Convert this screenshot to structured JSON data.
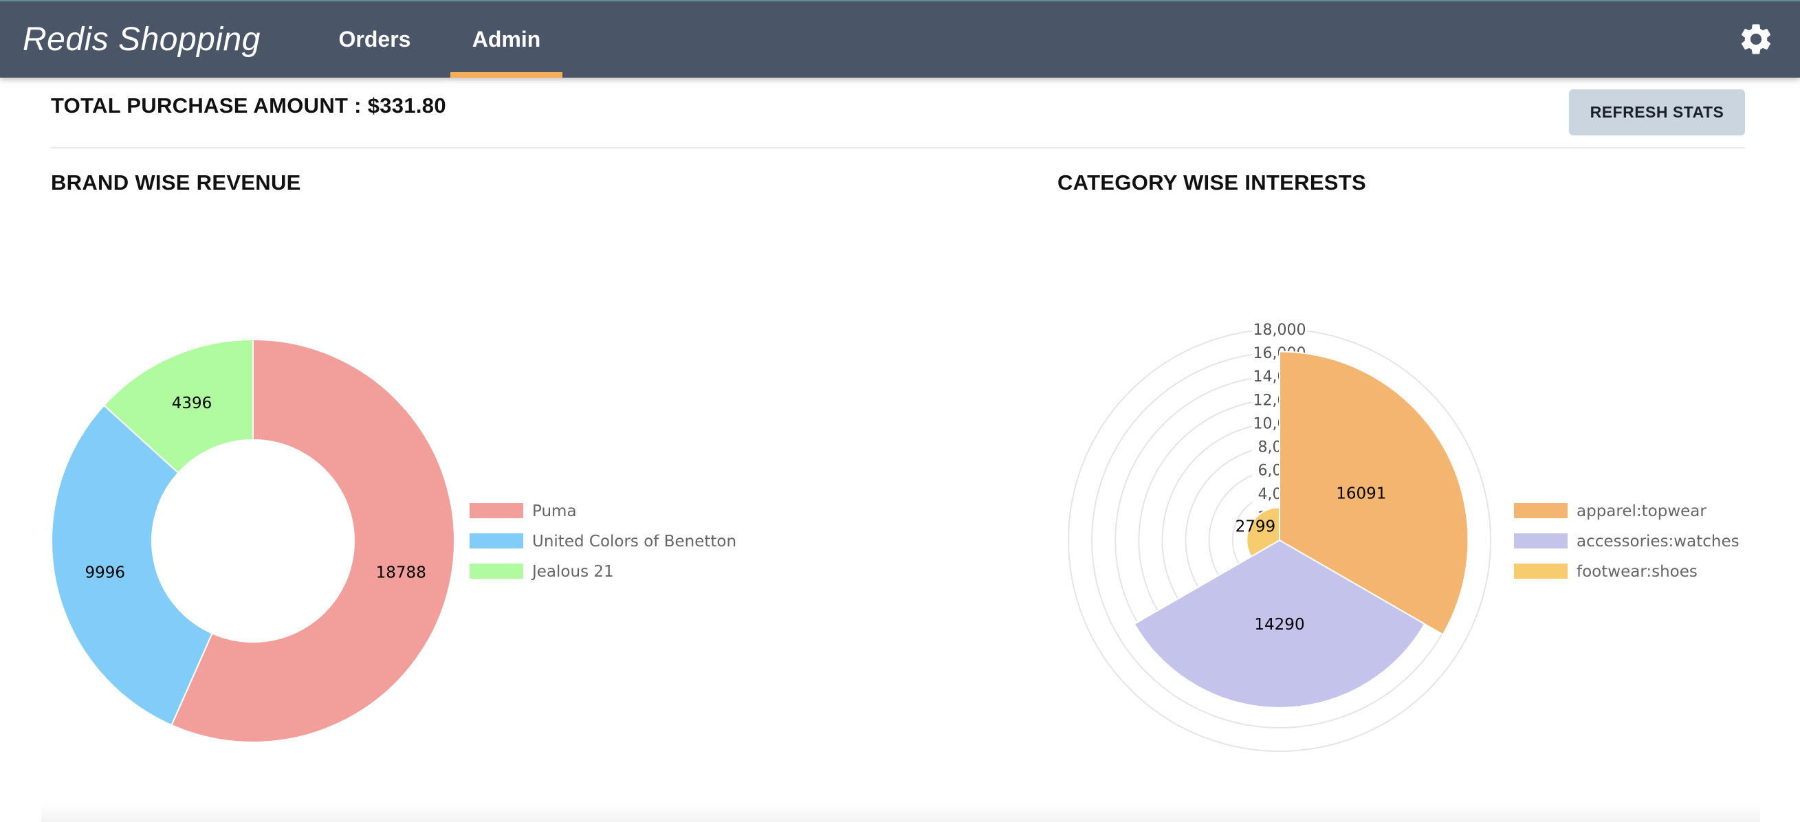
{
  "app": {
    "title": "Redis Shopping"
  },
  "nav": {
    "tabs": [
      {
        "label": "Orders",
        "active": false
      },
      {
        "label": "Admin",
        "active": true
      }
    ],
    "settings_icon": "gear-icon"
  },
  "summary": {
    "total_label": "TOTAL PURCHASE AMOUNT : $331.80",
    "refresh_label": "REFRESH STATS"
  },
  "sections": {
    "brand_title": "BRAND WISE REVENUE",
    "category_title": "CATEGORY WISE INTERESTS"
  },
  "colors": {
    "header_bg": "#4a5568",
    "active_tab_underline": "#f6ad55",
    "refresh_button_bg": "#cbd5e0"
  },
  "chart_data": [
    {
      "type": "pie",
      "variant": "doughnut",
      "categories": [
        "Puma",
        "United Colors of Benetton",
        "Jealous 21"
      ],
      "values": [
        18788,
        9996,
        4396
      ],
      "colors": [
        "#f29e9a",
        "#81ccf9",
        "#b0fb9f"
      ],
      "legend_position": "right",
      "data_labels": true
    },
    {
      "type": "pie",
      "variant": "polarArea",
      "categories": [
        "apparel:topwear",
        "accessories:watches",
        "footwear:shoes"
      ],
      "values": [
        16091,
        14290,
        2799
      ],
      "colors": [
        "#f3b570",
        "#c4c3ec",
        "#f6cc6f"
      ],
      "r_axis": {
        "min": 0,
        "max": 18000,
        "step": 2000,
        "tick_labels": [
          "18,000",
          "16,000",
          "14,000",
          "12,000",
          "10,000",
          "8,000",
          "6,000",
          "4,000",
          "2,000"
        ]
      },
      "legend_position": "right",
      "data_labels": true
    }
  ]
}
